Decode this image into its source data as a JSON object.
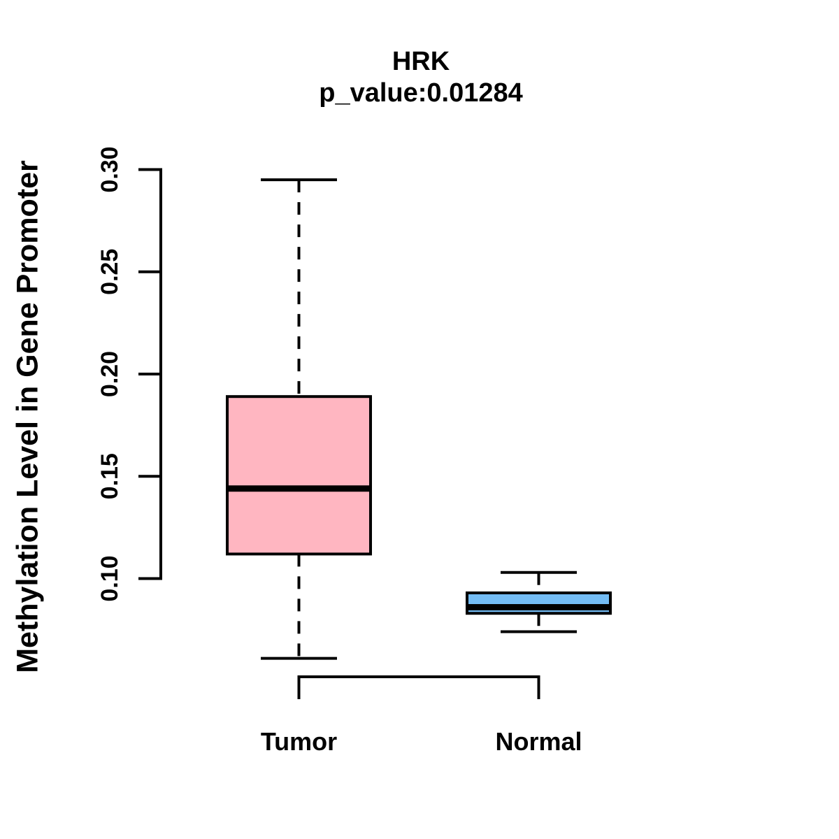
{
  "chart_data": {
    "type": "boxplot",
    "title": "HRK",
    "subtitle": "p_value:0.01284",
    "ylabel": "Methylation Level in Gene Promoter",
    "xlabel": "",
    "categories": [
      "Tumor",
      "Normal"
    ],
    "y_axis": {
      "ticks": [
        0.1,
        0.15,
        0.2,
        0.25,
        0.3
      ],
      "tick_labels": [
        "0.10",
        "0.15",
        "0.20",
        "0.25",
        "0.30"
      ],
      "range_shown": [
        0.05,
        0.31
      ]
    },
    "series": [
      {
        "name": "Tumor",
        "fill_color": "#FFB6C1",
        "stats": {
          "whisker_low": 0.061,
          "q1": 0.112,
          "median": 0.144,
          "q3": 0.189,
          "whisker_high": 0.295
        },
        "outliers": []
      },
      {
        "name": "Normal",
        "fill_color": "#73BCF4",
        "stats": {
          "whisker_low": 0.074,
          "q1": 0.083,
          "median": 0.086,
          "q3": 0.093,
          "whisker_high": 0.103
        },
        "outliers": []
      }
    ],
    "stroke_color": "#000000",
    "background_color": "#FFFFFF",
    "grid": false,
    "legend": "none",
    "comparison_bracket": {
      "connects": [
        "Tumor",
        "Normal"
      ]
    }
  }
}
